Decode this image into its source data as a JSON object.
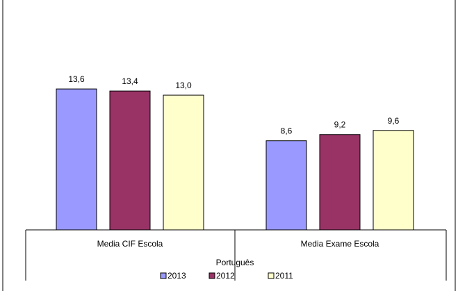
{
  "chart_data": {
    "type": "bar",
    "group_title": "Português",
    "categories": [
      "Media CIF Escola",
      "Media Exame Escola"
    ],
    "series": [
      {
        "name": "2013",
        "values": [
          13.6,
          8.6
        ],
        "labels": [
          "13,6",
          "8,6"
        ],
        "color": "#9999ff"
      },
      {
        "name": "2012",
        "values": [
          13.4,
          9.2
        ],
        "labels": [
          "13,4",
          "9,2"
        ],
        "color": "#993366"
      },
      {
        "name": "2011",
        "values": [
          13.0,
          9.6
        ],
        "labels": [
          "13,0",
          "9,6"
        ],
        "color": "#ffffcc"
      }
    ],
    "ylim": [
      0,
      16.2
    ],
    "grid": false,
    "legend_position": "bottom"
  }
}
